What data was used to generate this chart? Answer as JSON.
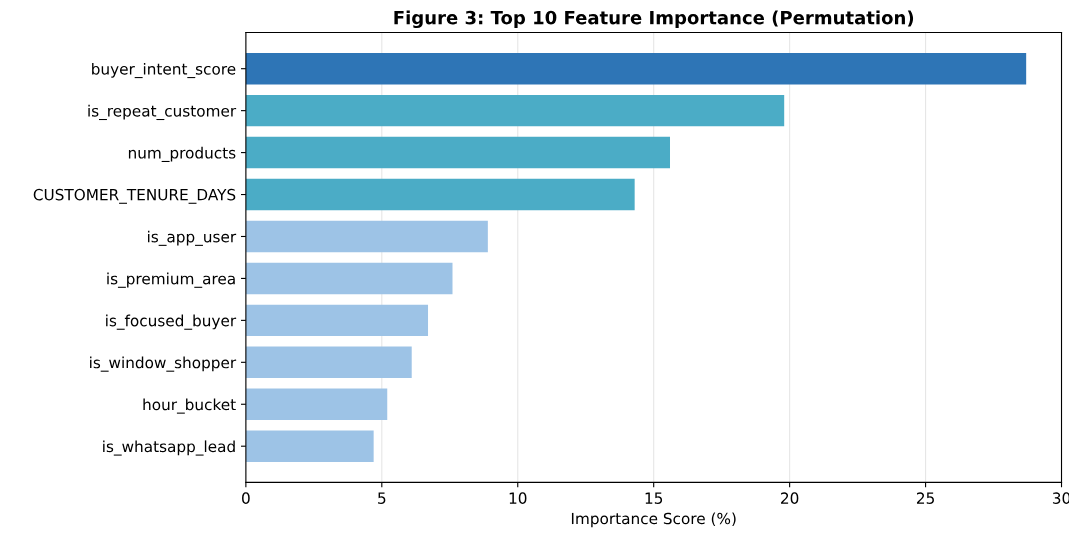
{
  "chart_data": {
    "type": "bar",
    "orientation": "horizontal",
    "title": "Figure 3: Top 10 Feature Importance (Permutation)",
    "xlabel": "Importance Score (%)",
    "categories": [
      "buyer_intent_score",
      "is_repeat_customer",
      "num_products",
      "CUSTOMER_TENURE_DAYS",
      "is_app_user",
      "is_premium_area",
      "is_focused_buyer",
      "is_window_shopper",
      "hour_bucket",
      "is_whatsapp_lead"
    ],
    "values": [
      28.7,
      19.8,
      15.6,
      14.3,
      8.9,
      7.6,
      6.7,
      6.1,
      5.2,
      4.7
    ],
    "colors": [
      "#2e75b6",
      "#4bacc6",
      "#4bacc6",
      "#4bacc6",
      "#9dc3e6",
      "#9dc3e6",
      "#9dc3e6",
      "#9dc3e6",
      "#9dc3e6",
      "#9dc3e6"
    ],
    "xlim": [
      0,
      30
    ],
    "xticks": [
      0,
      5,
      10,
      15,
      20,
      25,
      30
    ],
    "grid": "x"
  }
}
